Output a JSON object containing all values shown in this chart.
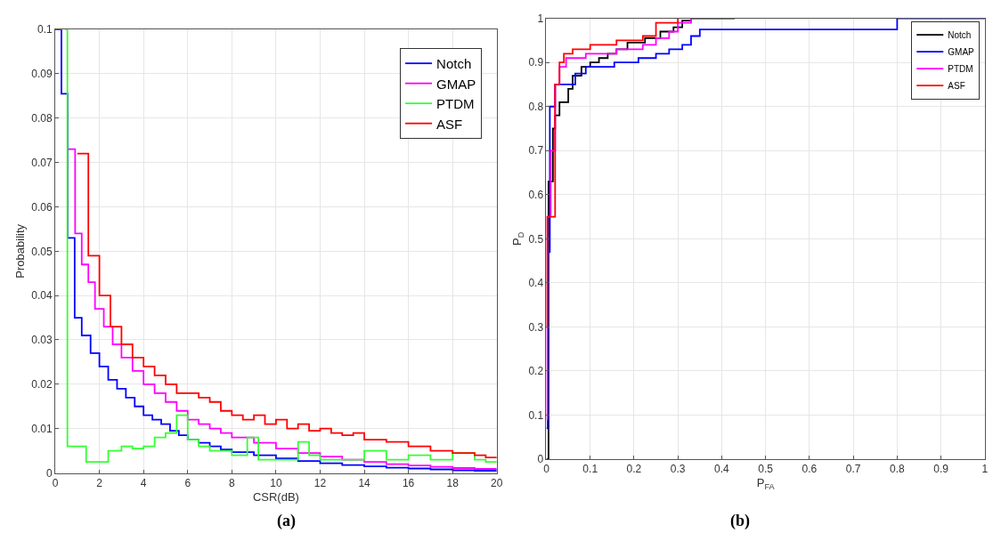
{
  "chart_data": [
    {
      "type": "step",
      "xlabel": "CSR(dB)",
      "ylabel": "Probability",
      "xlim": [
        0,
        20
      ],
      "ylim": [
        0,
        0.1
      ],
      "xticks": [
        0,
        2,
        4,
        6,
        8,
        10,
        12,
        14,
        16,
        18,
        20
      ],
      "yticks": [
        0,
        0.01,
        0.02,
        0.03,
        0.04,
        0.05,
        0.06,
        0.07,
        0.08,
        0.09,
        0.1
      ],
      "grid": true,
      "legend": "top right",
      "annotations": [
        "(a)"
      ],
      "series": [
        {
          "name": "Notch",
          "color": "#0000ff",
          "x": [
            0,
            0.28,
            0.56,
            0.88,
            1.2,
            1.6,
            2,
            2.4,
            2.8,
            3.2,
            3.6,
            4,
            4.4,
            4.8,
            5.2,
            5.6,
            6,
            6.5,
            7,
            7.5,
            8,
            9,
            10,
            11,
            12,
            13,
            14,
            15,
            16,
            17,
            18,
            19,
            20
          ],
          "values": [
            0.1,
            0.0855,
            0.053,
            0.035,
            0.031,
            0.027,
            0.024,
            0.021,
            0.019,
            0.017,
            0.015,
            0.013,
            0.012,
            0.011,
            0.0095,
            0.0085,
            0.0075,
            0.0068,
            0.006,
            0.0053,
            0.0047,
            0.004,
            0.0033,
            0.0027,
            0.0022,
            0.0018,
            0.0015,
            0.0012,
            0.001,
            0.0008,
            0.0006,
            0.0005,
            0.0005
          ]
        },
        {
          "name": "GMAP",
          "color": "#ff00ff",
          "x": [
            0.6,
            0.9,
            1.2,
            1.5,
            1.8,
            2.2,
            2.6,
            3,
            3.5,
            4,
            4.5,
            5,
            5.5,
            6,
            6.5,
            7,
            7.5,
            8,
            9,
            10,
            11,
            12,
            13,
            14,
            15,
            16,
            17,
            18,
            19,
            20
          ],
          "values": [
            0.073,
            0.054,
            0.047,
            0.043,
            0.037,
            0.033,
            0.029,
            0.026,
            0.023,
            0.02,
            0.018,
            0.016,
            0.014,
            0.012,
            0.011,
            0.01,
            0.009,
            0.008,
            0.0068,
            0.0055,
            0.0045,
            0.0037,
            0.003,
            0.0025,
            0.002,
            0.0017,
            0.0014,
            0.0011,
            0.0009,
            0.0009
          ]
        },
        {
          "name": "PTDM",
          "color": "#33ff33",
          "x": [
            0.45,
            0.55,
            1.4,
            2.4,
            3,
            3.5,
            4,
            4.5,
            5,
            5.5,
            6,
            6.5,
            7,
            7.5,
            8,
            8.7,
            9.2,
            10,
            11,
            11.5,
            12,
            13,
            14,
            15,
            16,
            17,
            18,
            19,
            19.5,
            20
          ],
          "values": [
            0.1,
            0.006,
            0.0025,
            0.005,
            0.006,
            0.0055,
            0.006,
            0.008,
            0.009,
            0.013,
            0.0075,
            0.006,
            0.005,
            0.005,
            0.004,
            0.008,
            0.003,
            0.003,
            0.007,
            0.004,
            0.003,
            0.003,
            0.005,
            0.003,
            0.004,
            0.003,
            0.0045,
            0.003,
            0.0025,
            0.0025
          ]
        },
        {
          "name": "ASF",
          "color": "#ff0000",
          "x": [
            1,
            1.5,
            2,
            2.5,
            3,
            3.5,
            4,
            4.5,
            5,
            5.5,
            6.5,
            7,
            7.5,
            8,
            8.5,
            9,
            9.5,
            10,
            10.5,
            11,
            11.5,
            12,
            12.5,
            13,
            13.5,
            14,
            15,
            16,
            17,
            18,
            19,
            19.5,
            20
          ],
          "values": [
            0.072,
            0.049,
            0.04,
            0.033,
            0.029,
            0.026,
            0.024,
            0.022,
            0.02,
            0.018,
            0.017,
            0.016,
            0.014,
            0.013,
            0.012,
            0.013,
            0.011,
            0.012,
            0.01,
            0.011,
            0.0095,
            0.01,
            0.009,
            0.0085,
            0.009,
            0.0075,
            0.007,
            0.006,
            0.005,
            0.0045,
            0.004,
            0.0035,
            0.0035
          ]
        }
      ]
    },
    {
      "type": "step",
      "xlabel": "P$_{FA}$",
      "ylabel": "P$_{D}$",
      "xlim": [
        0,
        1
      ],
      "ylim": [
        0,
        1
      ],
      "xticks": [
        0,
        0.1,
        0.2,
        0.3,
        0.4,
        0.5,
        0.6,
        0.7,
        0.8,
        0.9,
        1
      ],
      "yticks": [
        0,
        0.1,
        0.2,
        0.3,
        0.4,
        0.5,
        0.6,
        0.7,
        0.8,
        0.9,
        1
      ],
      "grid": true,
      "legend": "top right",
      "annotations": [
        "(b)"
      ],
      "series": [
        {
          "name": "Notch",
          "color": "#000000",
          "x": [
            0,
            0.005,
            0.015,
            0.02,
            0.03,
            0.05,
            0.06,
            0.08,
            0.1,
            0.12,
            0.14,
            0.16,
            0.185,
            0.225,
            0.26,
            0.29,
            0.31,
            0.33,
            0.43
          ],
          "values": [
            0,
            0.63,
            0.75,
            0.78,
            0.81,
            0.84,
            0.87,
            0.89,
            0.9,
            0.91,
            0.92,
            0.93,
            0.945,
            0.955,
            0.97,
            0.98,
            0.995,
            1,
            1
          ]
        },
        {
          "name": "GMAP",
          "color": "#0000ff",
          "x": [
            0,
            0.003,
            0.008,
            0.02,
            0.066,
            0.09,
            0.155,
            0.21,
            0.25,
            0.28,
            0.31,
            0.33,
            0.35,
            0.8,
            1
          ],
          "values": [
            0.07,
            0.47,
            0.8,
            0.85,
            0.875,
            0.89,
            0.9,
            0.91,
            0.92,
            0.93,
            0.94,
            0.96,
            0.975,
            1,
            1
          ]
        },
        {
          "name": "PTDM",
          "color": "#ff00ff",
          "x": [
            0,
            0.002,
            0.01,
            0.02,
            0.03,
            0.045,
            0.09,
            0.16,
            0.22,
            0.25,
            0.28,
            0.3,
            0.33
          ],
          "values": [
            0.09,
            0.55,
            0.7,
            0.85,
            0.89,
            0.91,
            0.92,
            0.93,
            0.94,
            0.955,
            0.97,
            0.99,
            1
          ]
        },
        {
          "name": "ASF",
          "color": "#ff0000",
          "x": [
            0,
            0.002,
            0.02,
            0.03,
            0.04,
            0.06,
            0.1,
            0.16,
            0.22,
            0.25,
            0.3
          ],
          "values": [
            0.3,
            0.55,
            0.85,
            0.9,
            0.92,
            0.93,
            0.94,
            0.95,
            0.96,
            0.99,
            1
          ]
        }
      ]
    }
  ]
}
